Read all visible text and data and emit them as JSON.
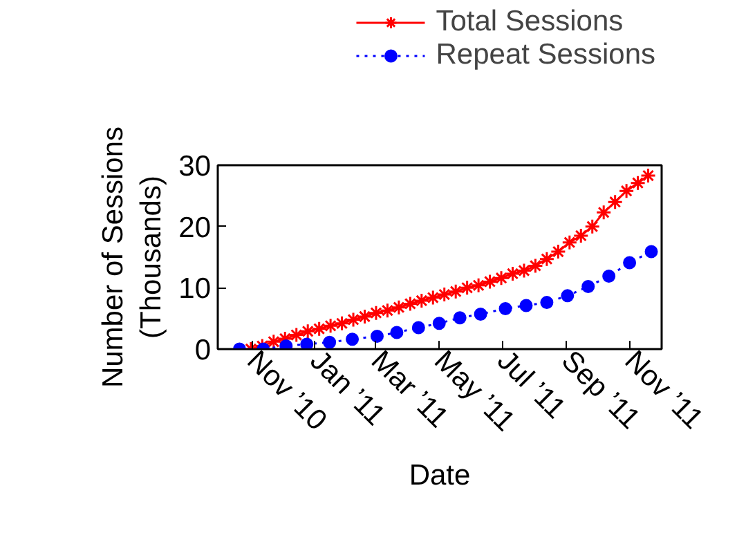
{
  "chart_data": {
    "type": "line",
    "xlabel": "Date",
    "ylabel": "Number of Sessions\n(Thousands)",
    "xlim": [
      "2010-09-29",
      "2011-12-02"
    ],
    "ylim": [
      0,
      30
    ],
    "yticks": [
      0,
      10,
      20,
      30
    ],
    "xticks": [
      {
        "value": "2010-11-01",
        "label": "Nov ’10"
      },
      {
        "value": "2011-01-01",
        "label": "Jan ’11"
      },
      {
        "value": "2011-03-01",
        "label": "Mar ’11"
      },
      {
        "value": "2011-05-01",
        "label": "May ’11"
      },
      {
        "value": "2011-07-01",
        "label": "Jul ’11"
      },
      {
        "value": "2011-09-01",
        "label": "Sep ’11"
      },
      {
        "value": "2011-11-01",
        "label": "Nov ’11"
      }
    ],
    "grid": false,
    "legend": "top right",
    "series": [
      {
        "name": "Total Sessions",
        "color": "#ff0000",
        "marker": "cross",
        "line_style": "solid",
        "x": [
          "2010-10-31",
          "2010-11-11",
          "2010-11-22",
          "2010-12-03",
          "2010-12-14",
          "2010-12-25",
          "2011-01-05",
          "2011-01-16",
          "2011-01-27",
          "2011-02-07",
          "2011-02-18",
          "2011-03-01",
          "2011-03-12",
          "2011-03-23",
          "2011-04-03",
          "2011-04-14",
          "2011-04-25",
          "2011-05-06",
          "2011-05-17",
          "2011-05-28",
          "2011-06-08",
          "2011-06-19",
          "2011-06-30",
          "2011-07-11",
          "2011-07-22",
          "2011-08-02",
          "2011-08-13",
          "2011-08-24",
          "2011-09-04",
          "2011-09-15",
          "2011-09-26",
          "2011-10-07",
          "2011-10-18",
          "2011-10-29",
          "2011-11-09",
          "2011-11-19"
        ],
        "values": [
          0,
          0.5,
          1.2,
          1.7,
          2.3,
          2.9,
          3.3,
          3.8,
          4.2,
          4.8,
          5.3,
          5.9,
          6.3,
          6.8,
          7.4,
          7.9,
          8.4,
          8.9,
          9.4,
          10.0,
          10.4,
          11.0,
          11.6,
          12.3,
          12.8,
          13.6,
          14.7,
          15.9,
          17.4,
          18.5,
          20.0,
          22.3,
          24.0,
          25.8,
          27.1,
          28.3
        ]
      },
      {
        "name": "Repeat Sessions",
        "color": "#0000ff",
        "marker": "circle",
        "line_style": "dotted",
        "x": [
          "2010-10-20",
          "2010-11-12",
          "2010-12-04",
          "2010-12-24",
          "2011-01-15",
          "2011-02-06",
          "2011-03-02",
          "2011-03-21",
          "2011-04-11",
          "2011-05-01",
          "2011-05-21",
          "2011-06-10",
          "2011-07-04",
          "2011-07-24",
          "2011-08-13",
          "2011-09-02",
          "2011-09-22",
          "2011-10-12",
          "2011-11-01",
          "2011-11-22"
        ],
        "values": [
          0,
          0,
          0.5,
          0.8,
          1.1,
          1.6,
          2.1,
          2.7,
          3.5,
          4.2,
          5.1,
          5.7,
          6.6,
          7.1,
          7.6,
          8.7,
          10.2,
          11.9,
          14.1,
          15.9
        ]
      }
    ]
  }
}
